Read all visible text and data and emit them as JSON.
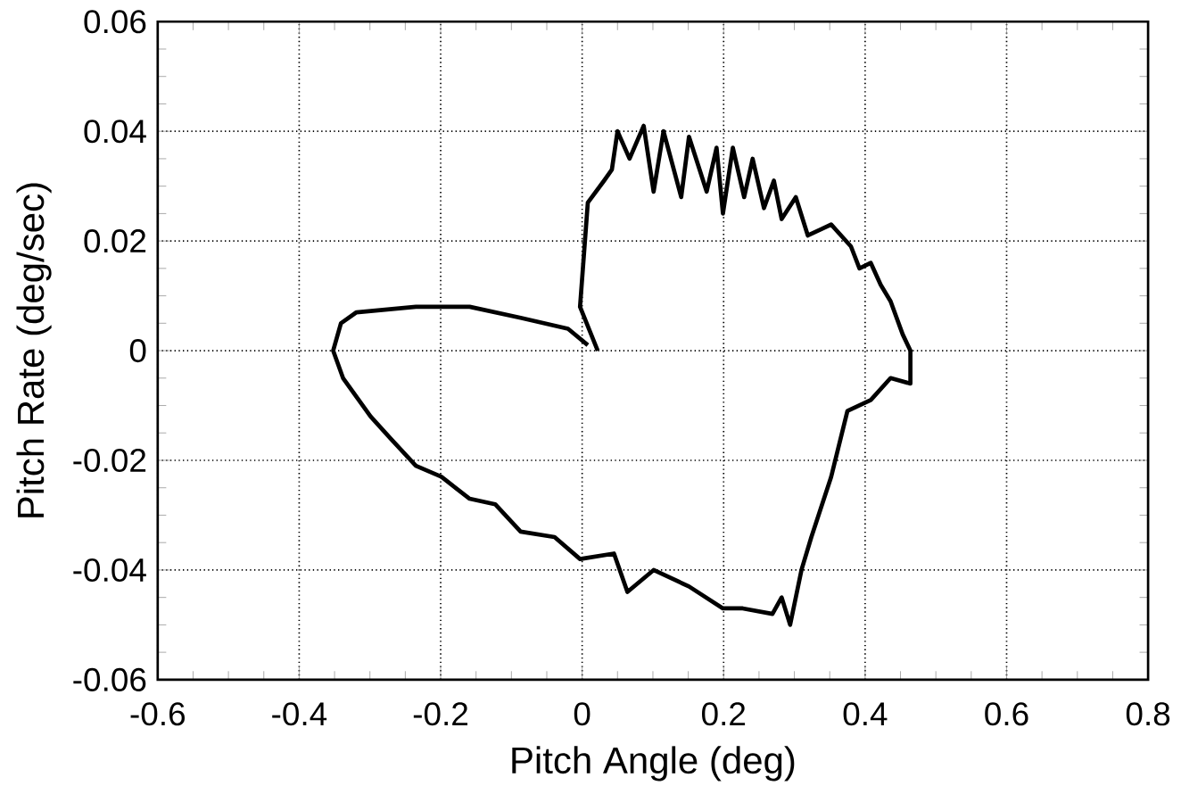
{
  "chart_data": {
    "type": "line",
    "xlabel": "Pitch Angle (deg)",
    "ylabel": "Pitch Rate (deg/sec)",
    "xlim": [
      -0.6,
      0.8
    ],
    "xticks": [
      -0.6,
      -0.4,
      -0.2,
      0,
      0.2,
      0.4,
      0.6,
      0.8
    ],
    "ylim": [
      -0.06,
      0.06
    ],
    "yticks": [
      -0.06,
      -0.04,
      -0.02,
      0,
      0.02,
      0.04,
      0.06
    ],
    "grid": true,
    "marker": "none",
    "line_style": "solid",
    "series": [
      {
        "color": "#000000",
        "x": [
          0.022,
          -0.003,
          0.008,
          0.031,
          0.042,
          0.05,
          0.067,
          0.087,
          0.101,
          0.115,
          0.14,
          0.151,
          0.176,
          0.19,
          0.199,
          0.213,
          0.229,
          0.241,
          0.257,
          0.271,
          0.282,
          0.302,
          0.319,
          0.352,
          0.38,
          0.392,
          0.408,
          0.422,
          0.436,
          0.453,
          0.464,
          0.464,
          0.436,
          0.408,
          0.375,
          0.352,
          0.324,
          0.31,
          0.294,
          0.282,
          0.269,
          0.227,
          0.199,
          0.151,
          0.101,
          0.064,
          0.045,
          -0.003,
          -0.039,
          -0.087,
          -0.123,
          -0.159,
          -0.199,
          -0.235,
          -0.271,
          -0.299,
          -0.338,
          -0.352,
          -0.341,
          -0.319,
          -0.235,
          -0.159,
          -0.087,
          -0.02,
          0.008
        ],
        "values": [
          0.0,
          0.008,
          0.027,
          0.031,
          0.033,
          0.04,
          0.035,
          0.041,
          0.029,
          0.04,
          0.028,
          0.039,
          0.029,
          0.037,
          0.025,
          0.037,
          0.028,
          0.035,
          0.026,
          0.031,
          0.024,
          0.028,
          0.021,
          0.023,
          0.019,
          0.015,
          0.016,
          0.012,
          0.009,
          0.003,
          0.0,
          -0.006,
          -0.005,
          -0.009,
          -0.011,
          -0.023,
          -0.034,
          -0.04,
          -0.05,
          -0.045,
          -0.048,
          -0.047,
          -0.047,
          -0.043,
          -0.04,
          -0.044,
          -0.037,
          -0.038,
          -0.034,
          -0.033,
          -0.028,
          -0.027,
          -0.023,
          -0.021,
          -0.016,
          -0.012,
          -0.005,
          0.0,
          0.005,
          0.007,
          0.008,
          0.008,
          0.006,
          0.004,
          0.001
        ]
      }
    ]
  }
}
